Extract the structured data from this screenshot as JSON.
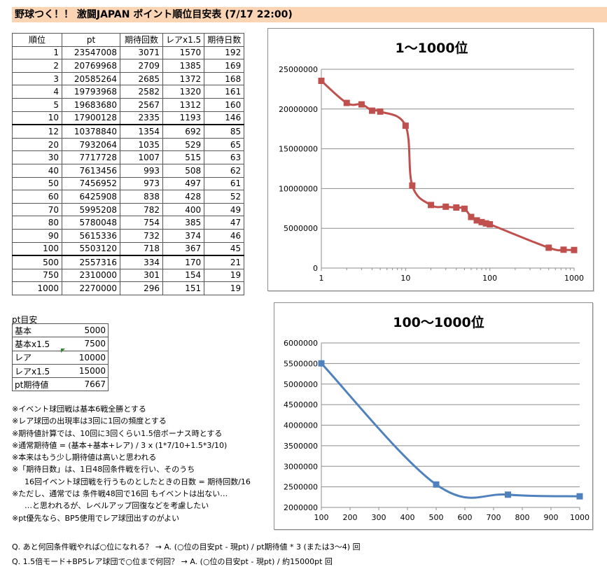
{
  "header": {
    "title": "野球つく！！ 激闘JAPAN ポイント順位目安表 (7/17 22:00)"
  },
  "rank_table": {
    "headers": [
      "順位",
      "pt",
      "期待回数",
      "レアx1.5",
      "期待日数"
    ],
    "rows": [
      [
        "1",
        "23547008",
        "3071",
        "1570",
        "192"
      ],
      [
        "2",
        "20769968",
        "2709",
        "1385",
        "169"
      ],
      [
        "3",
        "20585264",
        "2685",
        "1372",
        "168"
      ],
      [
        "4",
        "19793968",
        "2582",
        "1320",
        "161"
      ],
      [
        "5",
        "19683680",
        "2567",
        "1312",
        "160"
      ],
      [
        "10",
        "17900128",
        "2335",
        "1193",
        "146"
      ],
      [
        "12",
        "10378840",
        "1354",
        "692",
        "85"
      ],
      [
        "20",
        "7932064",
        "1035",
        "529",
        "65"
      ],
      [
        "30",
        "7717728",
        "1007",
        "515",
        "63"
      ],
      [
        "40",
        "7613456",
        "993",
        "508",
        "62"
      ],
      [
        "50",
        "7456952",
        "973",
        "497",
        "61"
      ],
      [
        "60",
        "6425908",
        "838",
        "428",
        "52"
      ],
      [
        "70",
        "5995208",
        "782",
        "400",
        "49"
      ],
      [
        "80",
        "5780048",
        "754",
        "385",
        "47"
      ],
      [
        "90",
        "5615336",
        "732",
        "374",
        "46"
      ],
      [
        "100",
        "5503120",
        "718",
        "367",
        "45"
      ],
      [
        "500",
        "2557316",
        "334",
        "170",
        "21"
      ],
      [
        "750",
        "2310000",
        "301",
        "154",
        "19"
      ],
      [
        "1000",
        "2270000",
        "296",
        "151",
        "19"
      ]
    ]
  },
  "pt_table": {
    "title": "pt目安",
    "rows": [
      [
        "基本",
        "5000"
      ],
      [
        "基本x1.5",
        "7500"
      ],
      [
        "レア",
        "10000"
      ],
      [
        "レアx1.5",
        "15000"
      ],
      [
        "pt期待値",
        "7667"
      ]
    ]
  },
  "notes": [
    "※イベント球団戦は基本6戦全勝とする",
    "※レア球団の出現率は3回に1回の頻度とする",
    "※期待値計算では、10回に3回くらい1.5倍ボーナス時とする",
    "※通常期待値 = (基本+基本+レア) / 3 x (1*7/10+1.5*3/10)",
    "※本来はもう少し期待値は高いと思われる",
    "※「期待日数」は、1日48回条件戦を行い、そのうち",
    "16回イベント球団戦を行うものとしたときの日数 = 期待回数/16",
    "※ただし、通常では 条件戦48回で16回 もイベントは出ない…",
    "…と思われるが、レベルアップ回復などを考慮したい",
    "※pt優先なら、BP5使用でレア球団出すのがよい"
  ],
  "questions": [
    "Q. あと何回条件戦やれば○位になれる？ → A. (○位の目安pt - 現pt) / pt期待値 * 3 (または3～4) 回",
    "Q. 1.5倍モード+BP5レア球団で○位まで何回？ → A. (○位の目安pt - 現pt) / 約15000pt 回"
  ],
  "chart_data": [
    {
      "type": "line",
      "title": "1～1000位",
      "x_scale": "log",
      "xlim": [
        1,
        1000
      ],
      "ylim": [
        0,
        25000000
      ],
      "x_ticks": [
        "1",
        "10",
        "100",
        "1000"
      ],
      "y_ticks": [
        "0",
        "5000000",
        "10000000",
        "15000000",
        "20000000",
        "25000000"
      ],
      "grid": true,
      "color": "#c0504d",
      "marker": "square",
      "x": [
        1,
        2,
        3,
        4,
        5,
        10,
        12,
        20,
        30,
        40,
        50,
        60,
        70,
        80,
        90,
        100,
        500,
        750,
        1000
      ],
      "y": [
        23547008,
        20769968,
        20585264,
        19793968,
        19683680,
        17900128,
        10378840,
        7932064,
        7717728,
        7613456,
        7456952,
        6425908,
        5995208,
        5780048,
        5615336,
        5503120,
        2557316,
        2310000,
        2270000
      ]
    },
    {
      "type": "line",
      "title": "100～1000位",
      "xlim": [
        100,
        1000
      ],
      "ylim": [
        2000000,
        6000000
      ],
      "x_ticks": [
        "100",
        "200",
        "300",
        "400",
        "500",
        "600",
        "700",
        "800",
        "900",
        "1000"
      ],
      "y_ticks": [
        "2000000",
        "2500000",
        "3000000",
        "3500000",
        "4000000",
        "4500000",
        "5000000",
        "5500000",
        "6000000"
      ],
      "grid": true,
      "color": "#4f81bd",
      "marker": "square",
      "x": [
        100,
        500,
        750,
        1000
      ],
      "y": [
        5503120,
        2557316,
        2310000,
        2270000
      ]
    }
  ]
}
